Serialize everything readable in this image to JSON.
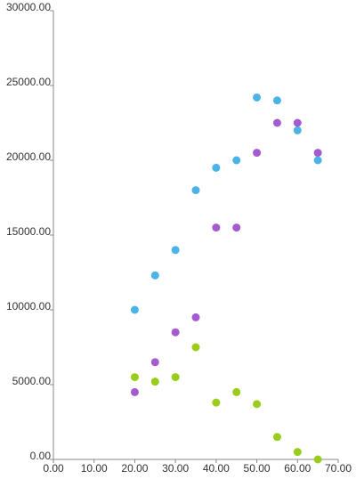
{
  "chart_data": {
    "type": "scatter",
    "x": [
      20,
      25,
      30,
      35,
      40,
      45,
      50,
      55,
      60,
      65
    ],
    "series": [
      {
        "color": "#4cb3e6",
        "values": [
          10000,
          12300,
          14000,
          18000,
          19500,
          20000,
          24200,
          24000,
          22000,
          20000
        ]
      },
      {
        "color": "#a45bd0",
        "values": [
          4500,
          6500,
          8500,
          9500,
          15500,
          15500,
          20500,
          22500,
          22500,
          20500
        ]
      },
      {
        "color": "#9acc1c",
        "values": [
          5500,
          5200,
          5500,
          7500,
          3800,
          4500,
          3700,
          1500,
          500,
          0
        ]
      }
    ],
    "xlim": [
      0,
      70
    ],
    "xticks": [
      {
        "value": 0,
        "label": "0.00"
      },
      {
        "value": 10,
        "label": "10.00"
      },
      {
        "value": 20,
        "label": "20.00"
      },
      {
        "value": 30,
        "label": "30.00"
      },
      {
        "value": 40,
        "label": "40.00"
      },
      {
        "value": 50,
        "label": "50.00"
      },
      {
        "value": 60,
        "label": "60.00"
      },
      {
        "value": 70,
        "label": "70.00"
      }
    ],
    "ylim": [
      0,
      30000
    ],
    "yticks": [
      {
        "value": 0,
        "label": "0.00"
      },
      {
        "value": 5000,
        "label": "5000.00"
      },
      {
        "value": 10000,
        "label": "10000.00"
      },
      {
        "value": 15000,
        "label": "15000.00"
      },
      {
        "value": 20000,
        "label": "20000.00"
      },
      {
        "value": 25000,
        "label": "25000.00"
      },
      {
        "value": 30000,
        "label": "30000.00"
      }
    ],
    "grid": false
  }
}
